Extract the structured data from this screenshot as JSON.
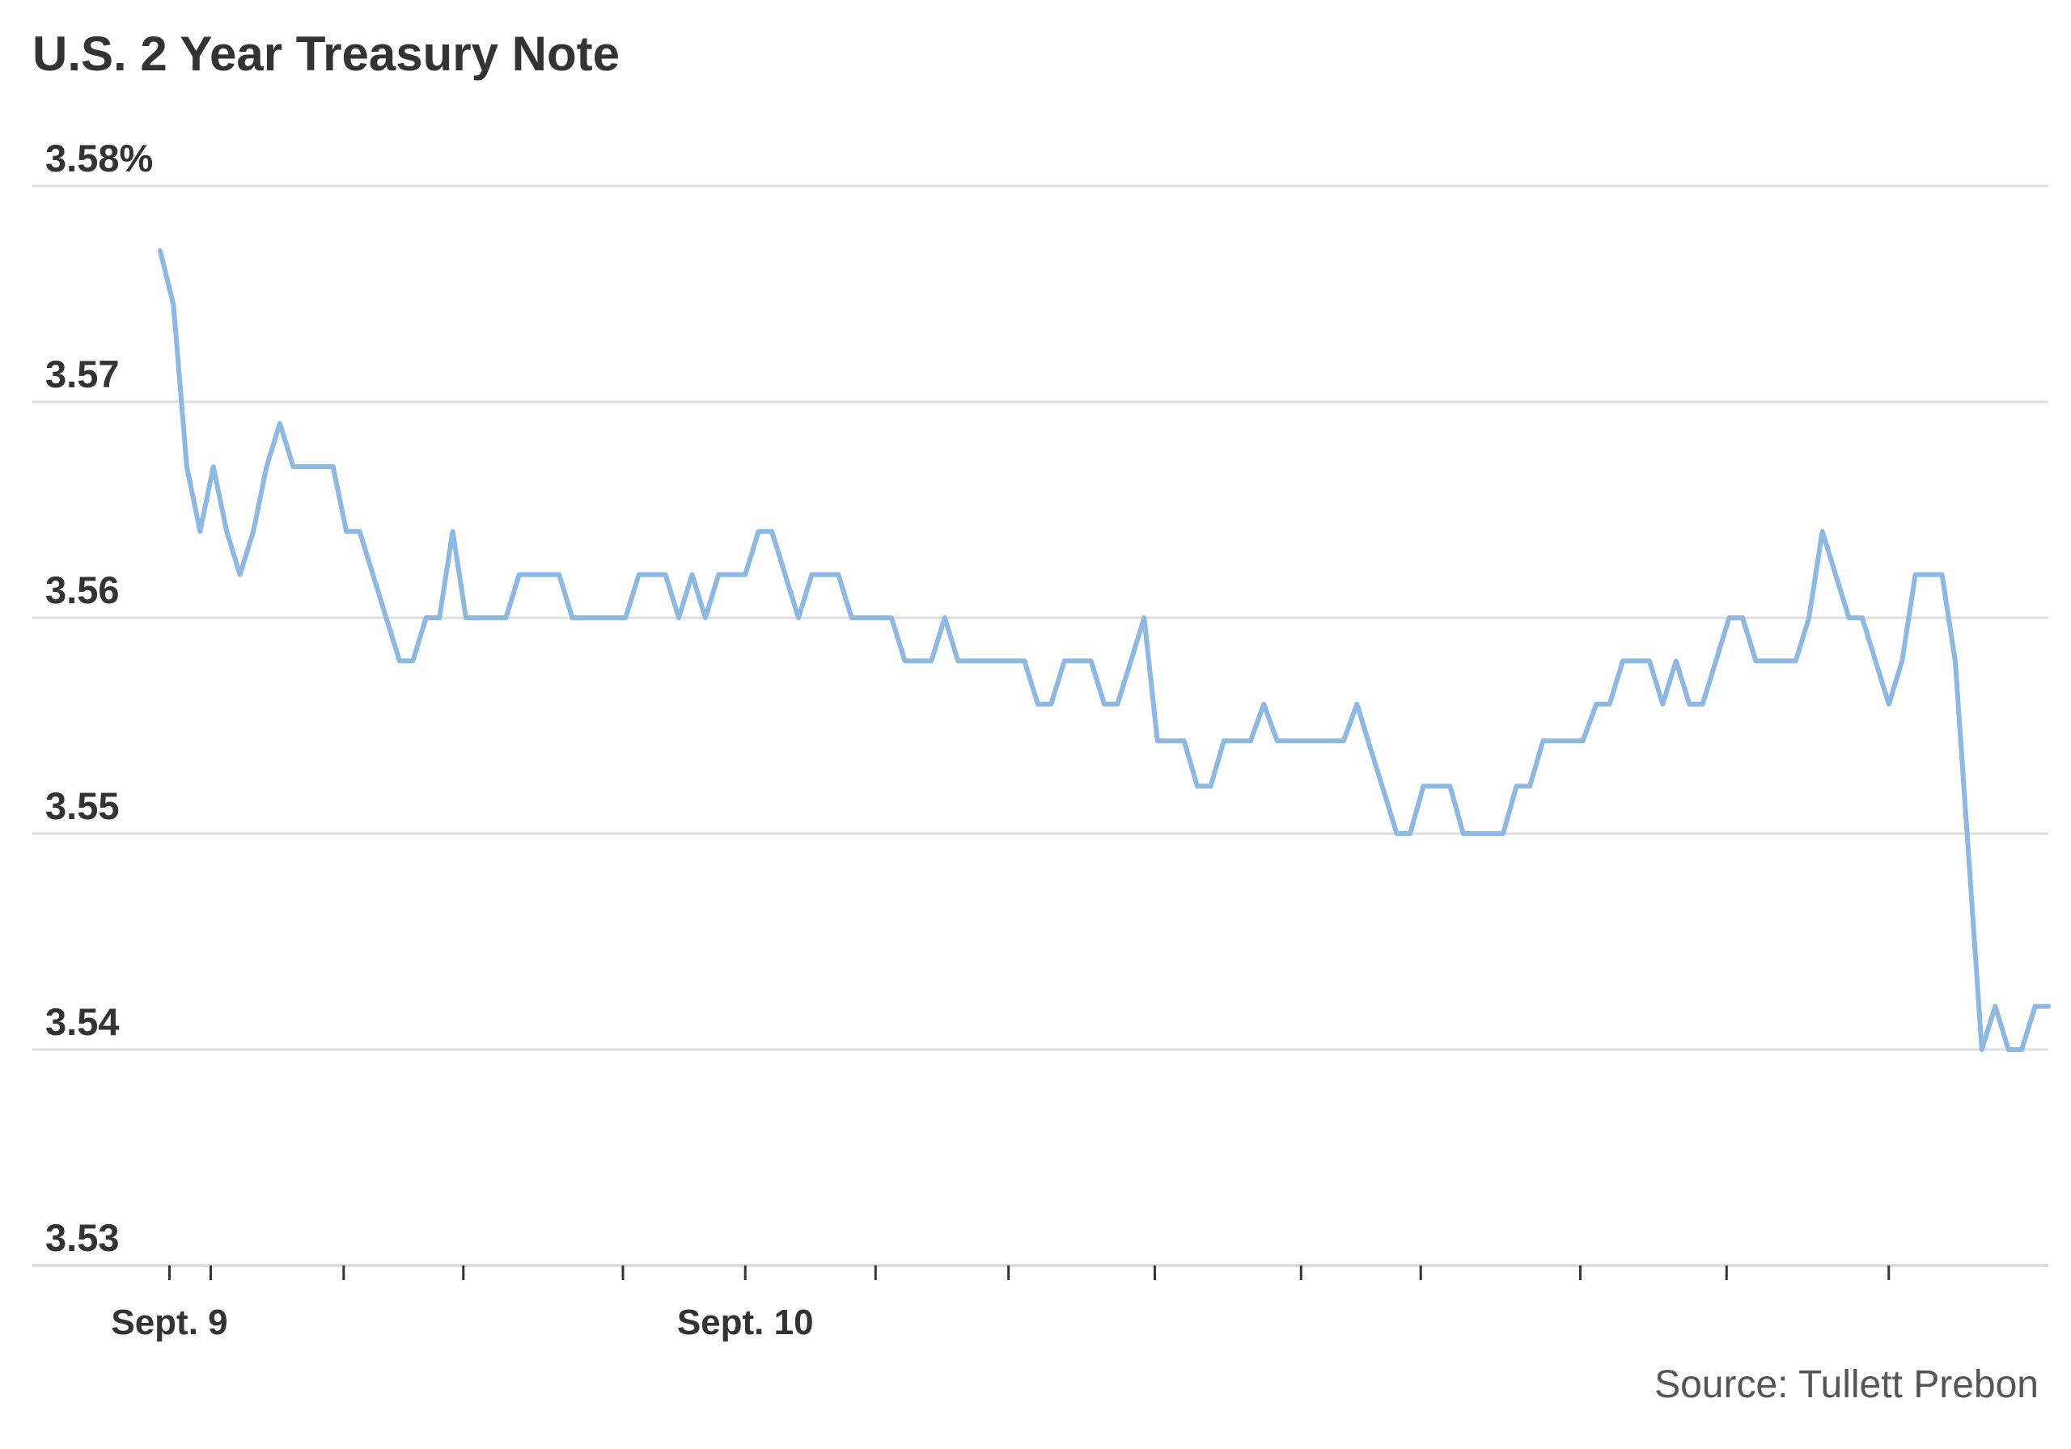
{
  "chart_data": {
    "type": "line",
    "title": "U.S. 2 Year Treasury Note",
    "source": "Source: Tullett Prebon",
    "xlabel": "",
    "ylabel": "",
    "ylim": [
      3.53,
      3.58
    ],
    "yticks": [
      {
        "value": 3.58,
        "label": "3.58%"
      },
      {
        "value": 3.57,
        "label": "3.57"
      },
      {
        "value": 3.56,
        "label": "3.56"
      },
      {
        "value": 3.55,
        "label": "3.55"
      },
      {
        "value": 3.54,
        "label": "3.54"
      },
      {
        "value": 3.53,
        "label": "3.53"
      }
    ],
    "xlabels": [
      {
        "index": 0.7,
        "label": "Sept. 9"
      },
      {
        "index": 44,
        "label": "Sept. 10"
      }
    ],
    "xticks": [
      0.7,
      3.8,
      13.8,
      22.8,
      34.8,
      44,
      53.8,
      63.8,
      74.8,
      85.8,
      94.8,
      106.8,
      117.8,
      130
    ],
    "grid": true,
    "line_color": "#8db8e2",
    "grid_color": "#dddddd",
    "series": [
      {
        "values": [
          3.577,
          3.5745,
          3.567,
          3.564,
          3.567,
          3.564,
          3.562,
          3.564,
          3.567,
          3.569,
          3.567,
          3.567,
          3.567,
          3.567,
          3.564,
          3.564,
          3.562,
          3.56,
          3.558,
          3.558,
          3.56,
          3.56,
          3.564,
          3.56,
          3.56,
          3.56,
          3.56,
          3.562,
          3.562,
          3.562,
          3.562,
          3.56,
          3.56,
          3.56,
          3.56,
          3.56,
          3.562,
          3.562,
          3.562,
          3.56,
          3.562,
          3.56,
          3.562,
          3.562,
          3.562,
          3.564,
          3.564,
          3.562,
          3.56,
          3.562,
          3.562,
          3.562,
          3.56,
          3.56,
          3.56,
          3.56,
          3.558,
          3.558,
          3.558,
          3.56,
          3.558,
          3.558,
          3.558,
          3.558,
          3.558,
          3.558,
          3.556,
          3.556,
          3.558,
          3.558,
          3.558,
          3.556,
          3.556,
          3.558,
          3.56,
          3.5543,
          3.5543,
          3.5543,
          3.5522,
          3.5522,
          3.5543,
          3.5543,
          3.5543,
          3.556,
          3.5543,
          3.5543,
          3.5543,
          3.5543,
          3.5543,
          3.5543,
          3.556,
          3.554,
          3.552,
          3.55,
          3.55,
          3.5522,
          3.5522,
          3.5522,
          3.55,
          3.55,
          3.55,
          3.55,
          3.5522,
          3.5522,
          3.5543,
          3.5543,
          3.5543,
          3.5543,
          3.556,
          3.556,
          3.558,
          3.558,
          3.558,
          3.556,
          3.558,
          3.556,
          3.556,
          3.558,
          3.56,
          3.56,
          3.558,
          3.558,
          3.558,
          3.558,
          3.56,
          3.564,
          3.562,
          3.56,
          3.56,
          3.558,
          3.556,
          3.558,
          3.562,
          3.562,
          3.562,
          3.558,
          3.549,
          3.54,
          3.542,
          3.54,
          3.54,
          3.542,
          3.542
        ]
      }
    ]
  }
}
